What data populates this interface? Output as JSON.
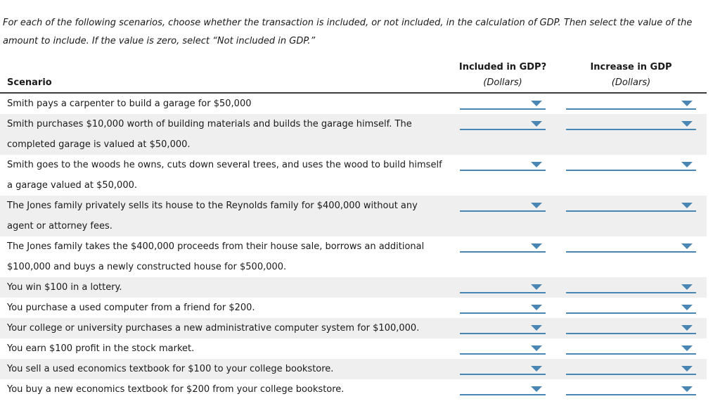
{
  "colors": {
    "accent": "#4a86b3",
    "row_alt": "#efefef",
    "header_line": "#3d3d3d",
    "text": "#1a1a1a"
  },
  "instructions": "For each of the following scenarios, choose whether the transaction is included, or not included, in the calculation of GDP. Then select the value of the amount to include. If the value is zero, select “Not included in GDP.”",
  "table": {
    "columns": {
      "scenario": "Scenario",
      "included": "Included in GDP?",
      "included_sub": "(Dollars)",
      "increase": "Increase in GDP",
      "increase_sub": "(Dollars)"
    },
    "rows": [
      {
        "scenario": "Smith pays a carpenter to build a garage for $50,000",
        "included_value": "",
        "increase_value": ""
      },
      {
        "scenario": "Smith purchases $10,000 worth of building materials and builds the garage himself. The completed garage is valued at $50,000.",
        "included_value": "",
        "increase_value": ""
      },
      {
        "scenario": "Smith goes to the woods he owns, cuts down several trees, and uses the wood to build himself a garage valued at $50,000.",
        "included_value": "",
        "increase_value": ""
      },
      {
        "scenario": "The Jones family privately sells its house to the Reynolds family for $400,000 without any agent or attorney fees.",
        "included_value": "",
        "increase_value": ""
      },
      {
        "scenario": "The Jones family takes the $400,000 proceeds from their house sale, borrows an additional $100,000 and buys a newly constructed house for $500,000.",
        "included_value": "",
        "increase_value": ""
      },
      {
        "scenario": "You win $100 in a lottery.",
        "included_value": "",
        "increase_value": ""
      },
      {
        "scenario": "You purchase a used computer from a friend for $200.",
        "included_value": "",
        "increase_value": ""
      },
      {
        "scenario": "Your college or university purchases a new administrative computer system for $100,000.",
        "included_value": "",
        "increase_value": ""
      },
      {
        "scenario": "You earn $100 profit in the stock market.",
        "included_value": "",
        "increase_value": ""
      },
      {
        "scenario": "You sell a used economics textbook for $100 to your college bookstore.",
        "included_value": "",
        "increase_value": ""
      },
      {
        "scenario": "You buy a new economics textbook for $200 from your college bookstore.",
        "included_value": "",
        "increase_value": ""
      }
    ]
  }
}
